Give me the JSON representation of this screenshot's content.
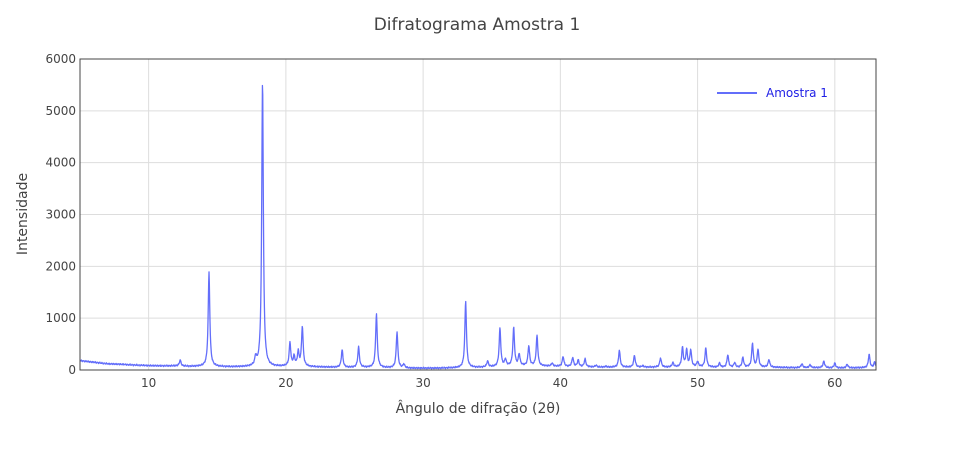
{
  "colors": {
    "series": "#636efa",
    "legend_text": "#1f1fe6",
    "grid": "#dddddd",
    "frame": "#444444",
    "text": "#444444"
  },
  "chart_data": {
    "type": "line",
    "title": "Difratograma Amostra 1",
    "xlabel": "Ângulo de difração (2θ)",
    "ylabel": "Intensidade",
    "xlim": [
      5,
      63
    ],
    "ylim": [
      0,
      6000
    ],
    "grid": true,
    "legend_position": "top-right",
    "xticks": [
      10,
      20,
      30,
      40,
      50,
      60
    ],
    "yticks": [
      0,
      1000,
      2000,
      3000,
      4000,
      5000,
      6000
    ],
    "series": [
      {
        "name": "Amostra 1",
        "baseline": [
          [
            5,
            180
          ],
          [
            6,
            150
          ],
          [
            7,
            120
          ],
          [
            8,
            110
          ],
          [
            9,
            95
          ],
          [
            10,
            85
          ],
          [
            11,
            80
          ],
          [
            12,
            80
          ],
          [
            13,
            70
          ],
          [
            14,
            70
          ],
          [
            15,
            65
          ],
          [
            16,
            60
          ],
          [
            17,
            60
          ],
          [
            18,
            60
          ],
          [
            19,
            60
          ],
          [
            20,
            70
          ],
          [
            21,
            70
          ],
          [
            22,
            60
          ],
          [
            23,
            55
          ],
          [
            24,
            50
          ],
          [
            25,
            50
          ],
          [
            26,
            50
          ],
          [
            27,
            45
          ],
          [
            28,
            40
          ],
          [
            29,
            35
          ],
          [
            30,
            35
          ],
          [
            31,
            35
          ],
          [
            32,
            40
          ],
          [
            33,
            45
          ],
          [
            34,
            50
          ],
          [
            35,
            60
          ],
          [
            36,
            70
          ],
          [
            37,
            80
          ],
          [
            38,
            80
          ],
          [
            39,
            75
          ],
          [
            40,
            70
          ],
          [
            41,
            65
          ],
          [
            42,
            60
          ],
          [
            43,
            55
          ],
          [
            44,
            55
          ],
          [
            45,
            55
          ],
          [
            46,
            55
          ],
          [
            47,
            55
          ],
          [
            48,
            55
          ],
          [
            49,
            60
          ],
          [
            50,
            60
          ],
          [
            51,
            55
          ],
          [
            52,
            50
          ],
          [
            53,
            50
          ],
          [
            54,
            55
          ],
          [
            55,
            55
          ],
          [
            56,
            50
          ],
          [
            57,
            45
          ],
          [
            58,
            45
          ],
          [
            59,
            45
          ],
          [
            60,
            40
          ],
          [
            61,
            40
          ],
          [
            62,
            45
          ],
          [
            63,
            40
          ]
        ],
        "peaks": [
          [
            12.3,
            190
          ],
          [
            14.4,
            1880
          ],
          [
            17.8,
            220
          ],
          [
            18.3,
            5570
          ],
          [
            20.3,
            520
          ],
          [
            20.6,
            250
          ],
          [
            20.9,
            340
          ],
          [
            21.2,
            830
          ],
          [
            24.1,
            390
          ],
          [
            25.3,
            440
          ],
          [
            26.6,
            1080
          ],
          [
            28.1,
            730
          ],
          [
            28.6,
            110
          ],
          [
            33.1,
            1320
          ],
          [
            34.7,
            170
          ],
          [
            35.6,
            800
          ],
          [
            36.0,
            200
          ],
          [
            36.6,
            810
          ],
          [
            37.0,
            300
          ],
          [
            37.7,
            460
          ],
          [
            38.3,
            660
          ],
          [
            39.4,
            130
          ],
          [
            40.2,
            260
          ],
          [
            40.9,
            240
          ],
          [
            41.3,
            190
          ],
          [
            41.8,
            210
          ],
          [
            42.6,
            90
          ],
          [
            43.3,
            70
          ],
          [
            44.3,
            380
          ],
          [
            45.4,
            280
          ],
          [
            46.0,
            80
          ],
          [
            47.3,
            230
          ],
          [
            48.2,
            140
          ],
          [
            48.9,
            430
          ],
          [
            49.2,
            380
          ],
          [
            49.5,
            380
          ],
          [
            50.0,
            160
          ],
          [
            50.6,
            420
          ],
          [
            51.6,
            130
          ],
          [
            52.2,
            290
          ],
          [
            52.7,
            140
          ],
          [
            53.3,
            240
          ],
          [
            54.0,
            510
          ],
          [
            54.4,
            390
          ],
          [
            55.2,
            200
          ],
          [
            57.6,
            120
          ],
          [
            58.2,
            100
          ],
          [
            59.2,
            170
          ],
          [
            60.0,
            130
          ],
          [
            60.9,
            110
          ],
          [
            62.5,
            300
          ],
          [
            62.9,
            150
          ]
        ]
      }
    ]
  }
}
